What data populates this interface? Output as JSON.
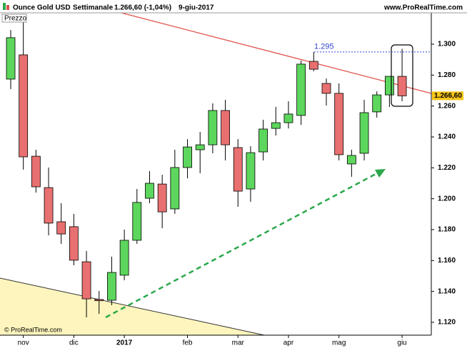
{
  "header": {
    "instrument": "Ounce Gold USD",
    "period": "Settimanale",
    "quote": "1.266,60 (-1,04%)",
    "date": "9-giu-2017",
    "site": "www.ProRealTime.com"
  },
  "chart_data": {
    "type": "candlestick",
    "panel_label": "Prezzo",
    "copyright": "© ProRealTime.com",
    "categories": [
      null,
      "nov",
      null,
      null,
      null,
      "dic",
      null,
      null,
      null,
      "2017",
      null,
      null,
      null,
      null,
      "feb",
      null,
      null,
      null,
      "mar",
      null,
      null,
      null,
      "apr",
      null,
      null,
      null,
      "mag",
      null,
      null,
      null,
      null,
      "giu"
    ],
    "open": [
      1277.4,
      1293.1,
      1227.5,
      1207.2,
      1185.1,
      1181.9,
      1159.2,
      1134.8,
      1134.3,
      1150.5,
      1173.1,
      1200.3,
      1209.5,
      1193.4,
      1220.2,
      1231.7,
      1234.9,
      1257.1,
      1233.1,
      1206.3,
      1230.3,
      1245.5,
      1249.2,
      1253.9,
      1288.9,
      1274.6,
      1268.2,
      1222.5,
      1229.4,
      1256.2,
      1267.2,
      1279.2
    ],
    "high": [
      1309.2,
      1314.8,
      1231.7,
      1220.2,
      1197.1,
      1190.2,
      1166.2,
      1140.3,
      1162.5,
      1180.0,
      1206.3,
      1217.9,
      1215.5,
      1231.7,
      1238.6,
      1243.2,
      1261.7,
      1264.0,
      1238.6,
      1234.0,
      1251.1,
      1259.4,
      1263.1,
      1289.4,
      1295,
      1277.8,
      1274.6,
      1231.7,
      1264.0,
      1269.5,
      1279.2,
      1297
    ],
    "low": [
      1270.9,
      1218.8,
      1204.0,
      1176.3,
      1170.8,
      1156.9,
      1123.2,
      1125.5,
      1131.1,
      1147.2,
      1170.8,
      1197.1,
      1180.9,
      1190.2,
      1213.2,
      1216.5,
      1229.4,
      1224.8,
      1194.8,
      1198.0,
      1224.8,
      1240.9,
      1245.5,
      1247.8,
      1282.5,
      1260.3,
      1224.8,
      1214.2,
      1224.8,
      1252.5,
      1259.4,
      1263.1
    ],
    "close": [
      1304.2,
      1227.1,
      1207.7,
      1184.2,
      1177.2,
      1160.2,
      1135.2,
      1134.0,
      1152.3,
      1173.1,
      1197.6,
      1210.0,
      1191.5,
      1220.2,
      1233.5,
      1234.9,
      1257.1,
      1234.9,
      1204.9,
      1229.8,
      1245.1,
      1249.2,
      1254.8,
      1287.1,
      1283.8,
      1268.2,
      1228.5,
      1228.0,
      1255.7,
      1267.2,
      1279.2,
      1266.6
    ],
    "up_color": "#5cd65c",
    "down_color": "#e87070",
    "ylim": [
      1111.7,
      1320.3
    ],
    "yticks": [
      {
        "value": 1120,
        "label": "1.120"
      },
      {
        "value": 1140,
        "label": "1.140"
      },
      {
        "value": 1160,
        "label": "1.160"
      },
      {
        "value": 1180,
        "label": "1.180"
      },
      {
        "value": 1200,
        "label": "1.200"
      },
      {
        "value": 1220,
        "label": "1.220"
      },
      {
        "value": 1240,
        "label": "1.240"
      },
      {
        "value": 1260,
        "label": "1.260"
      },
      {
        "value": 1280,
        "label": "1.280"
      },
      {
        "value": 1300,
        "label": "1.300"
      }
    ],
    "annotation": {
      "value": 1295,
      "label": "1.295"
    },
    "last_price": {
      "value": 1266.6,
      "label": "1.266,60"
    }
  }
}
